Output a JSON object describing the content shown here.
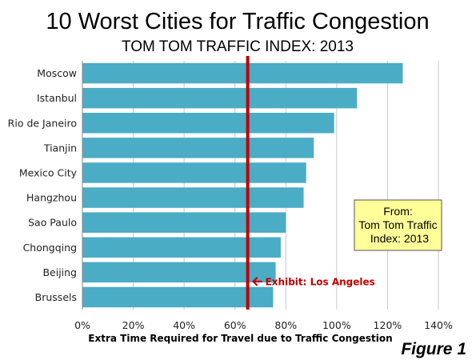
{
  "chart_data": {
    "type": "bar",
    "orientation": "horizontal",
    "title": "10 Worst Cities for Traffic Congestion",
    "subtitle": "TOM TOM TRAFFIC INDEX: 2013",
    "categories": [
      "Moscow",
      "Istanbul",
      "Rio de Janeiro",
      "Tianjin",
      "Mexico City",
      "Hangzhou",
      "Sao Paulo",
      "Chongqing",
      "Beijing",
      "Brussels"
    ],
    "values": [
      126,
      108,
      99,
      91,
      88,
      87,
      80,
      78,
      76,
      75
    ],
    "value_unit": "%",
    "xlabel": "Extra Time Required for Travel due to Traffic Congestion",
    "xlim": [
      0,
      140
    ],
    "xticks": [
      "0%",
      "20%",
      "40%",
      "60%",
      "80%",
      "100%",
      "120%",
      "140%"
    ],
    "grid": "vertical",
    "bar_color": "#4bacc6",
    "reference_line": {
      "value": 65,
      "color": "#c00000",
      "label": "Exhibit: Los Angeles"
    },
    "note_box": {
      "lines": [
        "From:",
        "Tom Tom Traffic",
        "Index: 2013"
      ],
      "fill": "#ffff99"
    },
    "figure_label": "Figure 1"
  }
}
